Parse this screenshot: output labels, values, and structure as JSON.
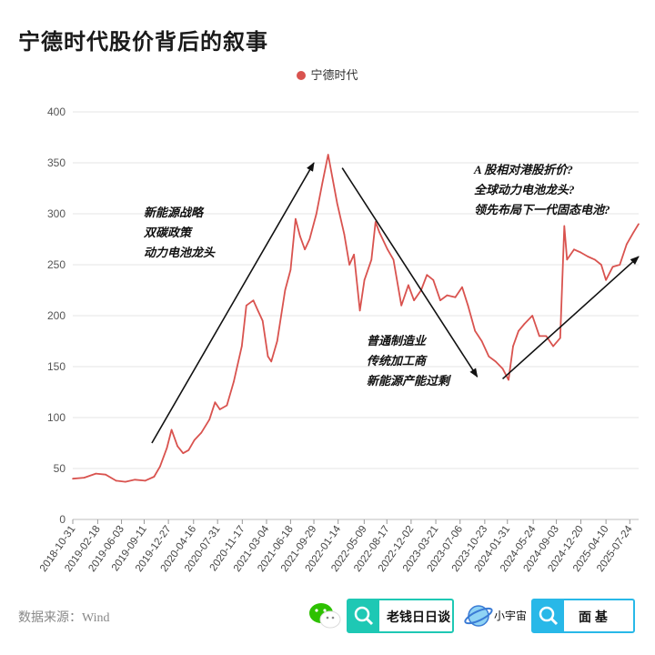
{
  "title": "宁德时代股价背后的叙事",
  "legend": {
    "label": "宁德时代",
    "color": "#d9534f"
  },
  "source": "数据来源：Wind",
  "logos": {
    "wechat_search": "老钱日日谈",
    "planet_label": "小宇宙",
    "search2": "面 基"
  },
  "annotations": {
    "a1": [
      "新能源战略",
      "双碳政策",
      "动力电池龙头"
    ],
    "a2": [
      "普通制造业",
      "传统加工商",
      "新能源产能过剩"
    ],
    "a3": [
      "A 股相对港股折价?",
      "全球动力电池龙头?",
      "领先布局下一代固态电池?"
    ]
  },
  "chart_data": {
    "type": "line",
    "series": [
      {
        "name": "宁德时代",
        "color": "#d9534f",
        "points": [
          [
            "2018-10-31",
            40
          ],
          [
            "2018-12-20",
            41
          ],
          [
            "2019-02-10",
            45
          ],
          [
            "2019-03-25",
            44
          ],
          [
            "2019-05-10",
            38
          ],
          [
            "2019-06-20",
            37
          ],
          [
            "2019-08-01",
            39
          ],
          [
            "2019-09-15",
            38
          ],
          [
            "2019-10-25",
            42
          ],
          [
            "2019-11-20",
            52
          ],
          [
            "2019-12-20",
            70
          ],
          [
            "2020-01-10",
            88
          ],
          [
            "2020-02-05",
            72
          ],
          [
            "2020-03-01",
            65
          ],
          [
            "2020-03-25",
            68
          ],
          [
            "2020-04-20",
            78
          ],
          [
            "2020-05-20",
            85
          ],
          [
            "2020-06-25",
            98
          ],
          [
            "2020-07-20",
            115
          ],
          [
            "2020-08-10",
            108
          ],
          [
            "2020-09-10",
            112
          ],
          [
            "2020-10-10",
            135
          ],
          [
            "2020-11-15",
            170
          ],
          [
            "2020-12-05",
            210
          ],
          [
            "2021-01-05",
            215
          ],
          [
            "2021-01-25",
            205
          ],
          [
            "2021-02-15",
            195
          ],
          [
            "2021-03-10",
            160
          ],
          [
            "2021-03-25",
            155
          ],
          [
            "2021-04-20",
            175
          ],
          [
            "2021-05-25",
            225
          ],
          [
            "2021-06-18",
            245
          ],
          [
            "2021-07-10",
            295
          ],
          [
            "2021-07-30",
            278
          ],
          [
            "2021-08-20",
            265
          ],
          [
            "2021-09-10",
            275
          ],
          [
            "2021-10-10",
            300
          ],
          [
            "2021-11-05",
            330
          ],
          [
            "2021-12-01",
            358
          ],
          [
            "2021-12-20",
            335
          ],
          [
            "2022-01-10",
            310
          ],
          [
            "2022-02-10",
            280
          ],
          [
            "2022-03-05",
            250
          ],
          [
            "2022-03-25",
            260
          ],
          [
            "2022-04-20",
            205
          ],
          [
            "2022-05-10",
            235
          ],
          [
            "2022-06-10",
            255
          ],
          [
            "2022-06-28",
            292
          ],
          [
            "2022-07-15",
            282
          ],
          [
            "2022-08-20",
            265
          ],
          [
            "2022-09-15",
            255
          ],
          [
            "2022-10-20",
            210
          ],
          [
            "2022-11-20",
            230
          ],
          [
            "2022-12-15",
            215
          ],
          [
            "2023-01-15",
            225
          ],
          [
            "2023-02-10",
            240
          ],
          [
            "2023-03-10",
            235
          ],
          [
            "2023-04-10",
            215
          ],
          [
            "2023-05-10",
            220
          ],
          [
            "2023-06-15",
            218
          ],
          [
            "2023-07-15",
            228
          ],
          [
            "2023-08-10",
            210
          ],
          [
            "2023-09-10",
            185
          ],
          [
            "2023-10-10",
            175
          ],
          [
            "2023-11-10",
            160
          ],
          [
            "2023-12-10",
            155
          ],
          [
            "2024-01-10",
            148
          ],
          [
            "2024-02-05",
            137
          ],
          [
            "2024-02-25",
            170
          ],
          [
            "2024-03-20",
            185
          ],
          [
            "2024-04-15",
            192
          ],
          [
            "2024-05-20",
            200
          ],
          [
            "2024-06-20",
            180
          ],
          [
            "2024-07-20",
            180
          ],
          [
            "2024-08-20",
            170
          ],
          [
            "2024-09-20",
            178
          ],
          [
            "2024-10-08",
            288
          ],
          [
            "2024-10-20",
            255
          ],
          [
            "2024-11-20",
            265
          ],
          [
            "2024-12-20",
            262
          ],
          [
            "2025-01-20",
            258
          ],
          [
            "2025-02-20",
            255
          ],
          [
            "2025-03-20",
            250
          ],
          [
            "2025-04-10",
            235
          ],
          [
            "2025-05-10",
            248
          ],
          [
            "2025-06-10",
            250
          ],
          [
            "2025-07-10",
            270
          ],
          [
            "2025-08-10",
            282
          ],
          [
            "2025-09-01",
            290
          ]
        ]
      }
    ],
    "xticks": [
      "2018-10-31",
      "2019-02-18",
      "2019-06-03",
      "2019-09-11",
      "2019-12-27",
      "2020-04-16",
      "2020-07-31",
      "2020-11-17",
      "2021-03-04",
      "2021-06-18",
      "2021-09-29",
      "2022-01-14",
      "2022-05-09",
      "2022-08-17",
      "2022-12-02",
      "2023-03-21",
      "2023-07-06",
      "2023-10-23",
      "2024-01-31",
      "2024-05-24",
      "2024-09-03",
      "2024-12-20",
      "2025-04-10",
      "2025-07-24"
    ],
    "yticks": [
      0,
      50,
      100,
      150,
      200,
      250,
      300,
      350,
      400
    ],
    "ylim": [
      0,
      400
    ],
    "xlim": [
      "2018-10-31",
      "2025-09-01"
    ],
    "grid": "horizontal",
    "legend_position": "top-center",
    "arrows": [
      {
        "from": [
          "2019-10-15",
          75
        ],
        "to": [
          "2021-09-29",
          350
        ]
      },
      {
        "from": [
          "2022-02-01",
          345
        ],
        "to": [
          "2023-09-20",
          140
        ]
      },
      {
        "from": [
          "2024-01-10",
          138
        ],
        "to": [
          "2025-09-01",
          258
        ]
      }
    ]
  }
}
